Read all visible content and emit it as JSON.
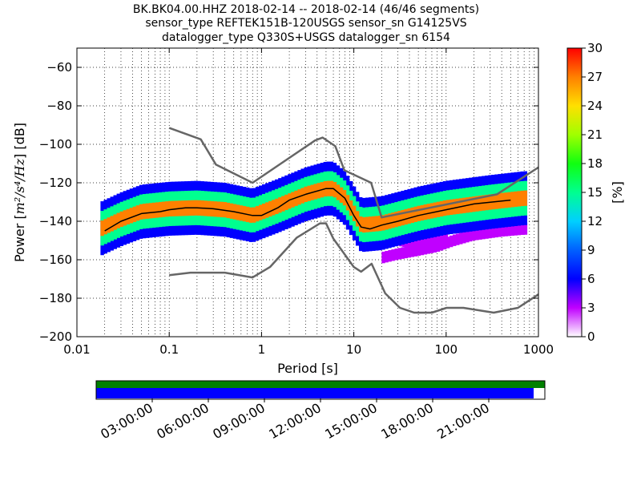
{
  "chart_data": {
    "type": "heatmap",
    "title_lines": [
      "BK.BK04.00.HHZ   2018-02-14 -- 2018-02-14  (46/46 segments)",
      "sensor_type REFTEK151B-120USGS sensor_sn G14125VS",
      "datalogger_type Q330S+USGS datalogger_sn 6154"
    ],
    "xlabel": "Period [s]",
    "ylabel_prefix": "Power [",
    "ylabel_units": "m²/s⁴/Hz",
    "ylabel_suffix": "] [dB]",
    "x_scale": "log",
    "xlim": [
      0.01,
      1000
    ],
    "ylim": [
      -200,
      -50
    ],
    "x_ticks": [
      {
        "v": 0.01,
        "label": "0.01"
      },
      {
        "v": 0.1,
        "label": "0.1"
      },
      {
        "v": 1,
        "label": "1"
      },
      {
        "v": 10,
        "label": "10"
      },
      {
        "v": 100,
        "label": "100"
      },
      {
        "v": 1000,
        "label": "1000"
      }
    ],
    "y_ticks": [
      -200,
      -180,
      -160,
      -140,
      -120,
      -100,
      -80,
      -60
    ],
    "grid": true,
    "colorbar": {
      "label": "[%]",
      "range": [
        0,
        30
      ],
      "ticks": [
        0,
        3,
        6,
        9,
        12,
        15,
        18,
        21,
        24,
        27,
        30
      ]
    },
    "series": [
      {
        "name": "",
        "role": "noise-model-high",
        "x": [
          0.1,
          0.22,
          0.32,
          0.8,
          3.8,
          4.6,
          6.3,
          7.9,
          15.4,
          20,
          354.8,
          1000
        ],
        "y": [
          -91.5,
          -97.4,
          -110.5,
          -120,
          -98,
          -96.5,
          -101,
          -113.5,
          -120,
          -138,
          -126,
          -112
        ]
      },
      {
        "name": "",
        "role": "noise-model-low",
        "x": [
          0.1,
          0.17,
          0.4,
          0.8,
          1.24,
          2.4,
          4.3,
          5,
          6,
          10,
          12,
          15.6,
          21.9,
          31.6,
          45,
          70,
          101,
          154,
          328,
          600,
          1000
        ],
        "y": [
          -168,
          -166.7,
          -166.7,
          -169.2,
          -163.7,
          -148.6,
          -141.1,
          -141.1,
          -149,
          -163.8,
          -166.2,
          -162.1,
          -177.5,
          -185,
          -187.5,
          -187.5,
          -185,
          -185,
          -187.5,
          -185,
          -178
        ]
      },
      {
        "name": "",
        "role": "mode",
        "x": [
          0.02,
          0.03,
          0.05,
          0.08,
          0.1,
          0.15,
          0.2,
          0.3,
          0.5,
          0.8,
          1,
          1.5,
          2,
          3,
          5,
          6,
          8,
          10,
          12,
          15,
          20,
          30,
          50,
          100,
          200,
          500
        ],
        "y": [
          -145,
          -140,
          -136,
          -135,
          -134,
          -133,
          -133,
          -133.5,
          -135,
          -137,
          -137,
          -133,
          -129,
          -126,
          -123,
          -123,
          -128,
          -137,
          -143,
          -144,
          -142,
          -140,
          -137,
          -134,
          -131,
          -129
        ]
      }
    ],
    "density_bands": [
      {
        "x": [
          0.018,
          0.03,
          0.05,
          0.1,
          0.2,
          0.4,
          0.8,
          1.5,
          3,
          5,
          6,
          8,
          12,
          20,
          50,
          100,
          300,
          700
        ],
        "y": [
          -144,
          -139,
          -135,
          -133.5,
          -133,
          -134,
          -137,
          -132,
          -126,
          -123,
          -123,
          -128,
          -142,
          -141,
          -136,
          -133,
          -130,
          -128
        ],
        "spread": 4,
        "level": 26
      },
      {
        "x": [
          0.018,
          0.03,
          0.05,
          0.1,
          0.2,
          0.4,
          0.8,
          1.5,
          3,
          5,
          6,
          8,
          12,
          20,
          50,
          100,
          300,
          700
        ],
        "y": [
          -144,
          -139,
          -135,
          -133.5,
          -133,
          -134,
          -137,
          -132,
          -126,
          -123,
          -123,
          -128,
          -142,
          -141,
          -136,
          -133,
          -130,
          -128
        ],
        "spread": 9,
        "level": 14
      },
      {
        "x": [
          0.018,
          0.03,
          0.05,
          0.1,
          0.2,
          0.4,
          0.8,
          1.5,
          3,
          5,
          6,
          8,
          12,
          20,
          50,
          100,
          300,
          700
        ],
        "y": [
          -144,
          -139,
          -135,
          -133.5,
          -133,
          -134,
          -137,
          -132,
          -126,
          -123,
          -123,
          -128,
          -142,
          -141,
          -136,
          -133,
          -130,
          -128
        ],
        "spread": 14,
        "level": 5
      },
      {
        "x": [
          20,
          30,
          50,
          80,
          120,
          200,
          400,
          700
        ],
        "y": [
          -159,
          -157,
          -155,
          -153,
          -150,
          -147,
          -145,
          -144
        ],
        "spread": 3,
        "level": 2
      },
      {
        "x": [
          15,
          25,
          40,
          70,
          100
        ],
        "y": [
          -148,
          -150,
          -152,
          -150,
          -148
        ],
        "spread": 2,
        "level": 2
      }
    ]
  },
  "time_axis": {
    "labels": [
      "03:00:00",
      "06:00:00",
      "09:00:00",
      "12:00:00",
      "15:00:00",
      "18:00:00",
      "21:00:00"
    ],
    "hours": [
      3,
      6,
      9,
      12,
      15,
      18,
      21
    ],
    "range_hours": [
      0,
      24
    ],
    "coverage_fraction": 0.975
  },
  "colors": {
    "noise_model": "#666666",
    "mode_line": "#000000",
    "grid": "#000000",
    "coverage_top": "#008000",
    "coverage_bottom": "#0000ff"
  }
}
